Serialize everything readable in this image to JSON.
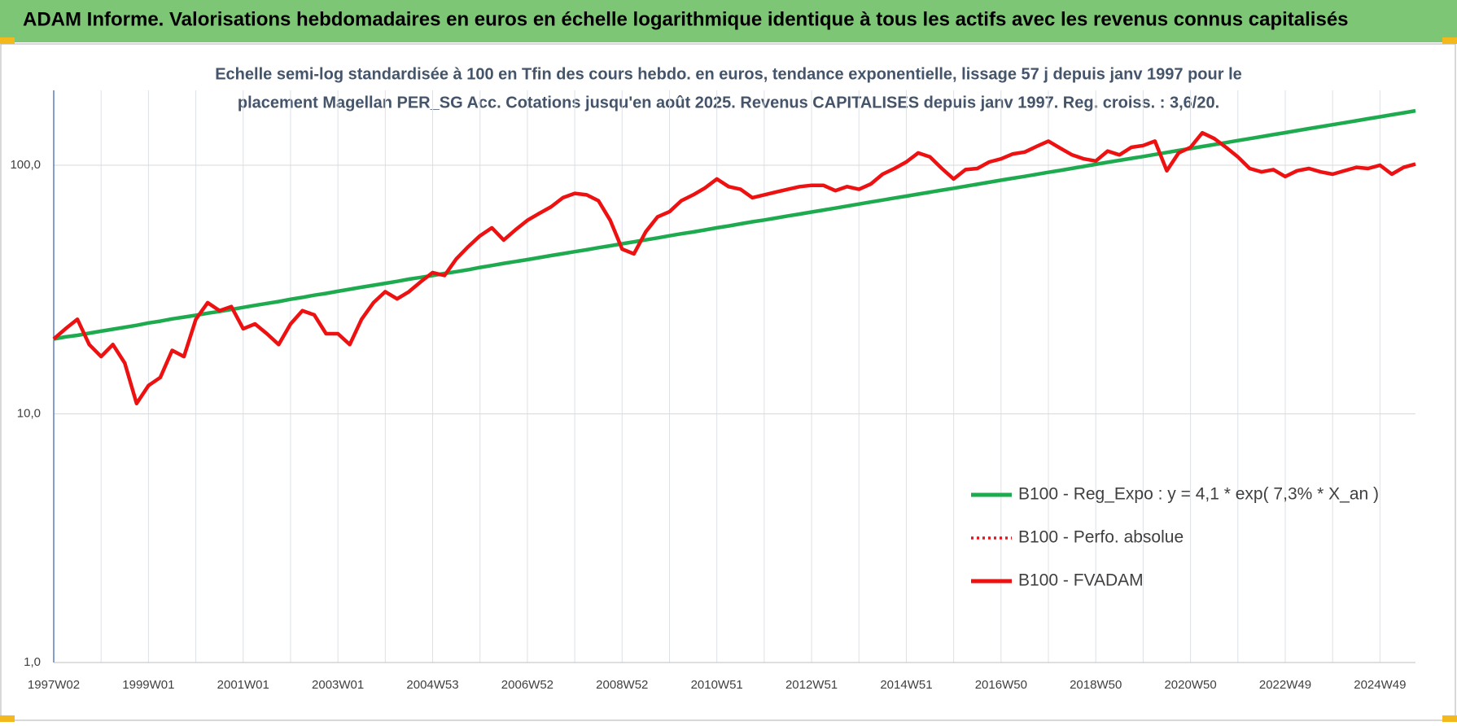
{
  "chart_data": {
    "type": "line",
    "title": "ADAM Informe. Valorisations hebdomadaires en euros en échelle logarithmique identique à tous les actifs avec les revenus connus capitalisés",
    "subtitle": [
      "Echelle semi-log standardisée à 100 en Tfin des cours hebdo. en euros, tendance exponentielle, lissage 57 j depuis janv 1997 pour le",
      "placement Magellan PER_SG Acc. Cotations jusqu'en août 2025. Revenus CAPITALISES depuis janv 1997. Reg. croiss. : 3,6/20."
    ],
    "log_scale": true,
    "grid": true,
    "legend": "lower right",
    "ylim": [
      1,
      200
    ],
    "yticks": [
      {
        "value": 1,
        "label": "1,0"
      },
      {
        "value": 10,
        "label": "10,0"
      },
      {
        "value": 100,
        "label": "100,0"
      }
    ],
    "categories": [
      "1997W02",
      null,
      null,
      null,
      null,
      null,
      null,
      null,
      "1999W01",
      null,
      null,
      null,
      null,
      null,
      null,
      null,
      "2001W01",
      null,
      null,
      null,
      null,
      null,
      null,
      null,
      "2003W01",
      null,
      null,
      null,
      null,
      null,
      null,
      null,
      "2004W53",
      null,
      null,
      null,
      null,
      null,
      null,
      null,
      "2006W52",
      null,
      null,
      null,
      null,
      null,
      null,
      null,
      "2008W52",
      null,
      null,
      null,
      null,
      null,
      null,
      null,
      "2010W51",
      null,
      null,
      null,
      null,
      null,
      null,
      null,
      "2012W51",
      null,
      null,
      null,
      null,
      null,
      null,
      null,
      "2014W51",
      null,
      null,
      null,
      null,
      null,
      null,
      null,
      "2016W50",
      null,
      null,
      null,
      null,
      null,
      null,
      null,
      "2018W50",
      null,
      null,
      null,
      null,
      null,
      null,
      null,
      "2020W50",
      null,
      null,
      null,
      null,
      null,
      null,
      null,
      "2022W49",
      null,
      null,
      null,
      null,
      null,
      null,
      null,
      "2024W49",
      null,
      null,
      null
    ],
    "series": [
      {
        "name": "B100 - Reg_Expo : y = 4,1 * exp( 7,3% *  X_an )",
        "color": "#1eab4f",
        "dash": "solid",
        "values": [
          20.0,
          20.4,
          20.7,
          21.1,
          21.5,
          21.9,
          22.3,
          22.7,
          23.2,
          23.6,
          24.1,
          24.5,
          24.9,
          25.4,
          25.8,
          26.3,
          26.8,
          27.3,
          27.8,
          28.3,
          28.9,
          29.4,
          30.0,
          30.5,
          31.1,
          31.7,
          32.3,
          32.9,
          33.5,
          34.1,
          34.8,
          35.4,
          36.0,
          36.7,
          37.3,
          38.0,
          38.8,
          39.5,
          40.3,
          41.0,
          41.7,
          42.5,
          43.3,
          44.1,
          44.9,
          45.7,
          46.6,
          47.4,
          48.3,
          49.2,
          50.1,
          51.0,
          52.0,
          53.0,
          53.9,
          54.9,
          56.0,
          57.0,
          58.1,
          59.2,
          60.2,
          61.3,
          62.5,
          63.6,
          64.8,
          66.0,
          67.2,
          68.5,
          69.8,
          71.1,
          72.4,
          73.8,
          75.1,
          76.5,
          77.9,
          79.4,
          80.8,
          82.3,
          83.8,
          85.4,
          87.0,
          88.6,
          90.2,
          91.9,
          93.6,
          95.3,
          97.1,
          98.9,
          100.8,
          102.7,
          104.6,
          106.5,
          108.4,
          110.4,
          112.5,
          114.6,
          116.7,
          118.9,
          121.1,
          123.3,
          125.6,
          127.9,
          130.3,
          132.7,
          135.2,
          137.7,
          140.3,
          142.9,
          145.5,
          148.2,
          150.9,
          153.7,
          156.6,
          159.5,
          162.5,
          165.5
        ]
      },
      {
        "name": "B100 - Perfo. absolue",
        "color": "#e8141b",
        "dash": "dotted",
        "values": [
          20,
          22,
          24,
          19,
          17,
          19,
          16,
          11,
          13,
          14,
          18,
          17,
          24,
          28,
          26,
          27,
          22,
          23,
          21,
          19,
          23,
          26,
          25,
          21,
          21,
          19,
          24,
          28,
          31,
          29,
          31,
          34,
          37,
          36,
          42,
          47,
          52,
          56,
          50,
          55,
          60,
          64,
          68,
          74,
          77,
          76,
          72,
          60,
          46,
          44,
          54,
          62,
          65,
          72,
          76,
          81,
          88,
          82,
          80,
          74,
          76,
          78,
          80,
          82,
          83,
          83,
          79,
          82,
          80,
          84,
          92,
          97,
          103,
          112,
          108,
          97,
          88,
          96,
          97,
          103,
          106,
          111,
          113,
          119,
          125,
          117,
          110,
          106,
          104,
          114,
          110,
          118,
          120,
          125,
          95,
          112,
          118,
          135,
          128,
          118,
          108,
          97,
          94,
          96,
          90,
          95,
          97,
          94,
          92,
          95,
          98,
          97,
          100,
          92,
          98,
          101
        ]
      },
      {
        "name": "B100 - FVADAM",
        "color": "#ee1111",
        "dash": "solid",
        "values": [
          20,
          22,
          24,
          19,
          17,
          19,
          16,
          11,
          13,
          14,
          18,
          17,
          24,
          28,
          26,
          27,
          22,
          23,
          21,
          19,
          23,
          26,
          25,
          21,
          21,
          19,
          24,
          28,
          31,
          29,
          31,
          34,
          37,
          36,
          42,
          47,
          52,
          56,
          50,
          55,
          60,
          64,
          68,
          74,
          77,
          76,
          72,
          60,
          46,
          44,
          54,
          62,
          65,
          72,
          76,
          81,
          88,
          82,
          80,
          74,
          76,
          78,
          80,
          82,
          83,
          83,
          79,
          82,
          80,
          84,
          92,
          97,
          103,
          112,
          108,
          97,
          88,
          96,
          97,
          103,
          106,
          111,
          113,
          119,
          125,
          117,
          110,
          106,
          104,
          114,
          110,
          118,
          120,
          125,
          95,
          112,
          118,
          135,
          128,
          118,
          108,
          97,
          94,
          96,
          90,
          95,
          97,
          94,
          92,
          95,
          98,
          97,
          100,
          92,
          98,
          101
        ]
      }
    ]
  }
}
